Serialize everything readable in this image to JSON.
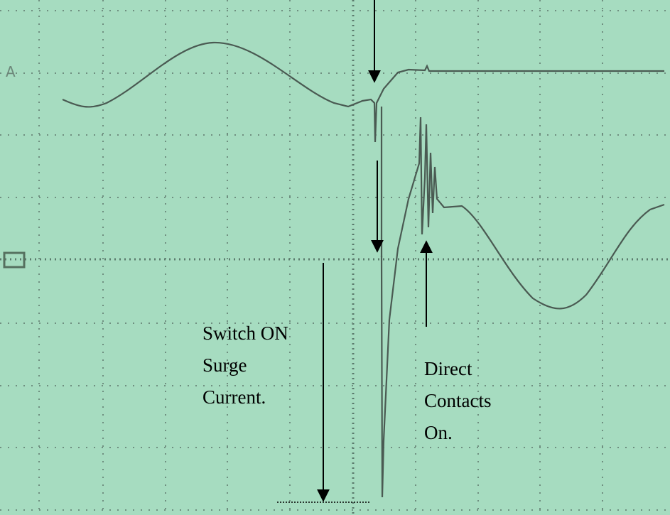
{
  "channel_marker": "A",
  "annotations": {
    "switch_on": [
      "Switch ON",
      "Surge",
      "Current."
    ],
    "direct_contacts": [
      "Direct",
      "Contacts",
      "On."
    ]
  }
}
